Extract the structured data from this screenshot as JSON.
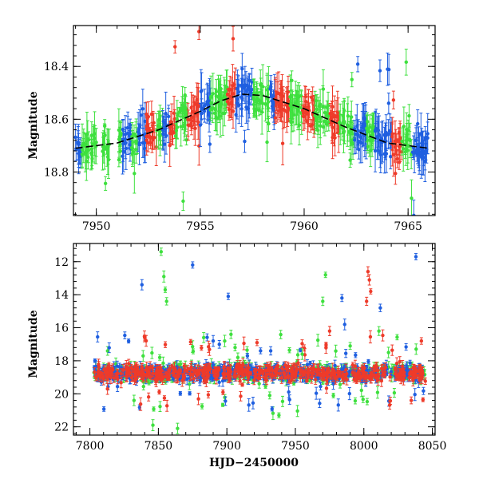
{
  "colors": {
    "blue": "#1f5fe0",
    "green": "#3ee03e",
    "red": "#ee3b2a",
    "model": "#000000"
  },
  "chart_data": [
    {
      "type": "scatter",
      "title": "",
      "xlabel": "",
      "ylabel": "Magnitude",
      "xlim": [
        7948.9,
        7966.3
      ],
      "ylim": [
        18.965,
        18.245
      ],
      "y_inverted": true,
      "x_ticks": [
        7950,
        7955,
        7960,
        7965
      ],
      "x_tick_labels": [
        "7950",
        "7955",
        "7960",
        "7965"
      ],
      "y_ticks": [
        18.4,
        18.6,
        18.8
      ],
      "y_tick_labels": [
        "18.4",
        "18.6",
        "18.8"
      ],
      "error_bars": true,
      "series_colors": [
        "blue",
        "green",
        "red"
      ],
      "observation_windows": [
        {
          "start": 7949.0,
          "end": 7949.3,
          "color": "blue"
        },
        {
          "start": 7949.3,
          "end": 7950.0,
          "color": "green"
        },
        {
          "start": 7950.3,
          "end": 7950.7,
          "color": "green"
        },
        {
          "start": 7951.0,
          "end": 7951.2,
          "color": "green"
        },
        {
          "start": 7951.25,
          "end": 7951.7,
          "color": "blue"
        },
        {
          "start": 7951.7,
          "end": 7952.0,
          "color": "green"
        },
        {
          "start": 7952.0,
          "end": 7952.4,
          "color": "blue"
        },
        {
          "start": 7952.4,
          "end": 7952.9,
          "color": "red"
        },
        {
          "start": 7952.9,
          "end": 7953.2,
          "color": "green"
        },
        {
          "start": 7953.2,
          "end": 7953.5,
          "color": "blue"
        },
        {
          "start": 7953.5,
          "end": 7953.8,
          "color": "red"
        },
        {
          "start": 7953.8,
          "end": 7954.4,
          "color": "green"
        },
        {
          "start": 7954.4,
          "end": 7955.0,
          "color": "red"
        },
        {
          "start": 7955.0,
          "end": 7955.5,
          "color": "blue"
        },
        {
          "start": 7955.5,
          "end": 7956.3,
          "color": "green"
        },
        {
          "start": 7956.3,
          "end": 7956.7,
          "color": "red"
        },
        {
          "start": 7956.7,
          "end": 7957.5,
          "color": "blue"
        },
        {
          "start": 7957.5,
          "end": 7958.3,
          "color": "green"
        },
        {
          "start": 7958.3,
          "end": 7958.6,
          "color": "blue"
        },
        {
          "start": 7958.6,
          "end": 7959.3,
          "color": "red"
        },
        {
          "start": 7959.3,
          "end": 7959.9,
          "color": "green"
        },
        {
          "start": 7959.9,
          "end": 7960.5,
          "color": "red"
        },
        {
          "start": 7960.5,
          "end": 7961.2,
          "color": "green"
        },
        {
          "start": 7961.2,
          "end": 7961.7,
          "color": "red"
        },
        {
          "start": 7961.7,
          "end": 7962.4,
          "color": "green"
        },
        {
          "start": 7962.4,
          "end": 7963.0,
          "color": "blue"
        },
        {
          "start": 7963.0,
          "end": 7963.4,
          "color": "green"
        },
        {
          "start": 7963.4,
          "end": 7964.2,
          "color": "blue"
        },
        {
          "start": 7964.2,
          "end": 7964.7,
          "color": "red"
        },
        {
          "start": 7964.7,
          "end": 7965.2,
          "color": "green"
        },
        {
          "start": 7965.2,
          "end": 7966.0,
          "color": "blue"
        }
      ],
      "model_curve": {
        "color": "model",
        "x": [
          7949.0,
          7951.0,
          7953.0,
          7955.0,
          7956.0,
          7957.0,
          7958.0,
          7960.0,
          7962.0,
          7964.0,
          7966.0
        ],
        "y": [
          18.71,
          18.69,
          18.64,
          18.57,
          18.53,
          18.505,
          18.51,
          18.56,
          18.63,
          18.69,
          18.71
        ]
      }
    },
    {
      "type": "scatter",
      "title": "",
      "xlabel": "HJD−2450000",
      "ylabel": "Magnitude",
      "xlim": [
        7788,
        8052
      ],
      "ylim": [
        22.5,
        10.9
      ],
      "y_inverted": true,
      "x_ticks": [
        7800,
        7850,
        7900,
        7950,
        8000,
        8050
      ],
      "x_tick_labels": [
        "7800",
        "7850",
        "7900",
        "7950",
        "8000",
        "8050"
      ],
      "y_ticks": [
        12,
        14,
        16,
        18,
        20,
        22
      ],
      "y_tick_labels": [
        "12",
        "14",
        "16",
        "18",
        "20",
        "22"
      ],
      "error_bars": true,
      "series_colors": [
        "blue",
        "green",
        "red"
      ],
      "baseline_magnitude": 18.75,
      "observation_span": [
        7803,
        8045
      ],
      "outliers": [
        {
          "x": 7838,
          "y": 13.4,
          "color": "blue"
        },
        {
          "x": 7840,
          "y": 16.6,
          "color": "red"
        },
        {
          "x": 7846,
          "y": 21.9,
          "color": "green"
        },
        {
          "x": 7852,
          "y": 11.4,
          "color": "green"
        },
        {
          "x": 7854,
          "y": 12.9,
          "color": "green"
        },
        {
          "x": 7855,
          "y": 13.7,
          "color": "green"
        },
        {
          "x": 7856,
          "y": 14.4,
          "color": "green"
        },
        {
          "x": 7851,
          "y": 17.8,
          "color": "green"
        },
        {
          "x": 7864,
          "y": 22.1,
          "color": "green"
        },
        {
          "x": 7875,
          "y": 12.2,
          "color": "blue"
        },
        {
          "x": 7890,
          "y": 16.8,
          "color": "blue"
        },
        {
          "x": 7901,
          "y": 14.1,
          "color": "blue"
        },
        {
          "x": 7903,
          "y": 16.4,
          "color": "green"
        },
        {
          "x": 7906,
          "y": 17.2,
          "color": "green"
        },
        {
          "x": 7908,
          "y": 17.8,
          "color": "green"
        },
        {
          "x": 7915,
          "y": 17.7,
          "color": "blue"
        },
        {
          "x": 7938,
          "y": 21.3,
          "color": "green"
        },
        {
          "x": 7972,
          "y": 12.8,
          "color": "green"
        },
        {
          "x": 7970,
          "y": 14.4,
          "color": "green"
        },
        {
          "x": 7975,
          "y": 16.2,
          "color": "red"
        },
        {
          "x": 7984,
          "y": 14.2,
          "color": "blue"
        },
        {
          "x": 7986,
          "y": 15.8,
          "color": "blue"
        },
        {
          "x": 8003,
          "y": 12.6,
          "color": "red"
        },
        {
          "x": 8004,
          "y": 13.1,
          "color": "red"
        },
        {
          "x": 8005,
          "y": 13.8,
          "color": "red"
        },
        {
          "x": 8002,
          "y": 14.4,
          "color": "red"
        },
        {
          "x": 8012,
          "y": 14.8,
          "color": "blue"
        },
        {
          "x": 8011,
          "y": 16.2,
          "color": "green"
        },
        {
          "x": 8018,
          "y": 17.5,
          "color": "green"
        },
        {
          "x": 8038,
          "y": 11.7,
          "color": "blue"
        },
        {
          "x": 8042,
          "y": 16.8,
          "color": "red"
        },
        {
          "x": 7932,
          "y": 17.4,
          "color": "blue"
        },
        {
          "x": 7955,
          "y": 17.6,
          "color": "green"
        },
        {
          "x": 7990,
          "y": 17.1,
          "color": "green"
        },
        {
          "x": 7922,
          "y": 16.9,
          "color": "red"
        }
      ]
    }
  ]
}
